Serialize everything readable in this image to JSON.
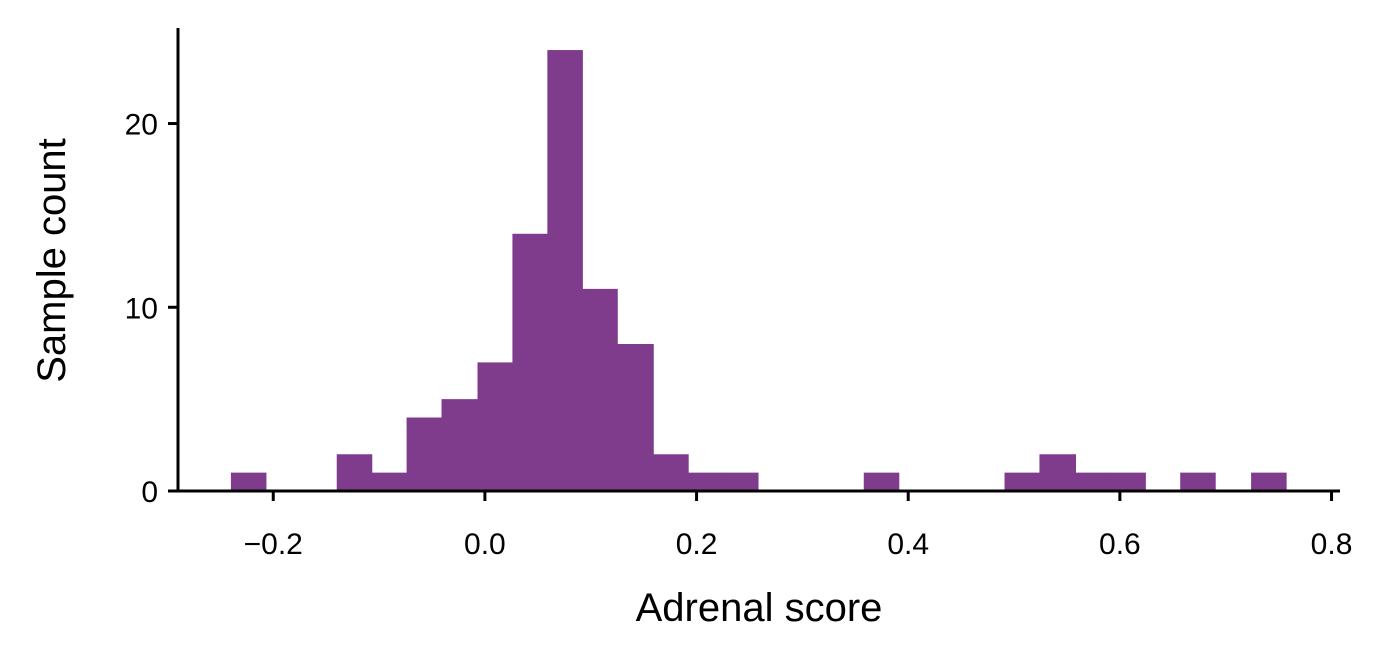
{
  "chart_data": {
    "type": "bar",
    "title": "",
    "xlabel": "Adrenal score",
    "ylabel": "Sample count",
    "xlim": [
      -0.29,
      0.808
    ],
    "ylim": [
      0,
      25.2
    ],
    "grid": false,
    "legend": "none",
    "bar_color": "#7F3C8D",
    "x_ticks": [
      {
        "value": -0.2,
        "label": "−0.2"
      },
      {
        "value": 0.0,
        "label": "0.0"
      },
      {
        "value": 0.2,
        "label": "0.2"
      },
      {
        "value": 0.4,
        "label": "0.4"
      },
      {
        "value": 0.6,
        "label": "0.6"
      },
      {
        "value": 0.8,
        "label": "0.8"
      }
    ],
    "y_ticks": [
      {
        "value": 0,
        "label": "0"
      },
      {
        "value": 10,
        "label": "10"
      },
      {
        "value": 20,
        "label": "20"
      }
    ],
    "bins": [
      {
        "x0": -0.24,
        "x1": -0.207,
        "count": 1
      },
      {
        "x0": -0.14,
        "x1": -0.107,
        "count": 2
      },
      {
        "x0": -0.107,
        "x1": -0.074,
        "count": 1
      },
      {
        "x0": -0.074,
        "x1": -0.041,
        "count": 4
      },
      {
        "x0": -0.041,
        "x1": -0.007,
        "count": 5
      },
      {
        "x0": -0.007,
        "x1": 0.026,
        "count": 7
      },
      {
        "x0": 0.026,
        "x1": 0.059,
        "count": 14
      },
      {
        "x0": 0.059,
        "x1": 0.092,
        "count": 24
      },
      {
        "x0": 0.092,
        "x1": 0.125,
        "count": 11
      },
      {
        "x0": 0.125,
        "x1": 0.159,
        "count": 8
      },
      {
        "x0": 0.159,
        "x1": 0.192,
        "count": 2
      },
      {
        "x0": 0.192,
        "x1": 0.225,
        "count": 1
      },
      {
        "x0": 0.225,
        "x1": 0.258,
        "count": 1
      },
      {
        "x0": 0.358,
        "x1": 0.391,
        "count": 1
      },
      {
        "x0": 0.491,
        "x1": 0.524,
        "count": 1
      },
      {
        "x0": 0.524,
        "x1": 0.558,
        "count": 2
      },
      {
        "x0": 0.558,
        "x1": 0.591,
        "count": 1
      },
      {
        "x0": 0.591,
        "x1": 0.624,
        "count": 1
      },
      {
        "x0": 0.657,
        "x1": 0.69,
        "count": 1
      },
      {
        "x0": 0.724,
        "x1": 0.757,
        "count": 1
      }
    ]
  }
}
